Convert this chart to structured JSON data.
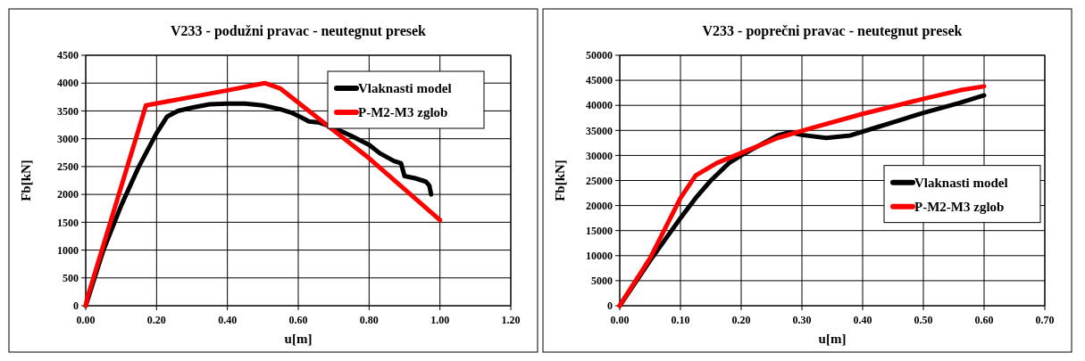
{
  "chart_data": [
    {
      "type": "line",
      "title": "V233 - podužni pravac - neutegnut presek",
      "xlabel": "u[m]",
      "ylabel": "Fb[kN]",
      "xlim": [
        0,
        1.2
      ],
      "xticks": [
        {
          "value": 0,
          "label": "0.00"
        },
        {
          "value": 0.2,
          "label": "0.20"
        },
        {
          "value": 0.4,
          "label": "0.40"
        },
        {
          "value": 0.6,
          "label": "0.60"
        },
        {
          "value": 0.8,
          "label": "0.80"
        },
        {
          "value": 1,
          "label": "1.00"
        },
        {
          "value": 1.2,
          "label": "1.20"
        }
      ],
      "ylim": [
        0,
        4500
      ],
      "yticks": [
        0,
        500,
        1000,
        1500,
        2000,
        2500,
        3000,
        3500,
        4000,
        4500
      ],
      "grid": true,
      "legend": "top right",
      "marker": "none",
      "line_style": "solid",
      "series": [
        {
          "name": "Vlaknasti model",
          "color": "#000000",
          "x": [
            0,
            0.05,
            0.1,
            0.15,
            0.2,
            0.23,
            0.26,
            0.3,
            0.35,
            0.4,
            0.45,
            0.5,
            0.55,
            0.58,
            0.61,
            0.63,
            0.66,
            0.7,
            0.75,
            0.8,
            0.83,
            0.87,
            0.89,
            0.9,
            0.93,
            0.96,
            0.97,
            0.975
          ],
          "values": [
            0,
            1000,
            1800,
            2500,
            3100,
            3400,
            3500,
            3560,
            3620,
            3630,
            3630,
            3600,
            3530,
            3470,
            3380,
            3310,
            3290,
            3200,
            3050,
            2890,
            2740,
            2600,
            2560,
            2330,
            2290,
            2230,
            2160,
            2000
          ]
        },
        {
          "name": "P-M2-M3 zglob",
          "color": "#ff0000",
          "x": [
            0,
            0.005,
            0.17,
            0.4,
            0.505,
            0.55,
            0.8,
            1.0
          ],
          "values": [
            0,
            150,
            3600,
            3870,
            4000,
            3900,
            2650,
            1540
          ]
        }
      ]
    },
    {
      "type": "line",
      "title": "V233 - poprečni pravac - neutegnut presek",
      "xlabel": "u[m]",
      "ylabel": "Fb[kN]",
      "xlim": [
        0,
        0.7
      ],
      "xticks": [
        {
          "value": 0,
          "label": "0.00"
        },
        {
          "value": 0.1,
          "label": "0.10"
        },
        {
          "value": 0.2,
          "label": "0.20"
        },
        {
          "value": 0.3,
          "label": "0.30"
        },
        {
          "value": 0.4,
          "label": "0.40"
        },
        {
          "value": 0.5,
          "label": "0.50"
        },
        {
          "value": 0.6,
          "label": "0.60"
        },
        {
          "value": 0.7,
          "label": "0.70"
        }
      ],
      "ylim": [
        0,
        50000
      ],
      "yticks": [
        0,
        5000,
        10000,
        15000,
        20000,
        25000,
        30000,
        35000,
        40000,
        45000,
        50000
      ],
      "grid": true,
      "legend": "right",
      "marker": "none",
      "line_style": "solid",
      "series": [
        {
          "name": "Vlaknasti model",
          "color": "#000000",
          "x": [
            0,
            0.05,
            0.1,
            0.125,
            0.15,
            0.18,
            0.2,
            0.23,
            0.26,
            0.28,
            0.3,
            0.34,
            0.38,
            0.42,
            0.46,
            0.5,
            0.56,
            0.6
          ],
          "values": [
            0,
            9000,
            17500,
            21500,
            25000,
            28500,
            30000,
            32000,
            34000,
            34600,
            34100,
            33500,
            34000,
            35500,
            37000,
            38500,
            40500,
            42000
          ]
        },
        {
          "name": "P-M2-M3 zglob",
          "color": "#ff0000",
          "x": [
            0,
            0.005,
            0.05,
            0.1,
            0.125,
            0.16,
            0.2,
            0.26,
            0.32,
            0.4,
            0.5,
            0.56,
            0.6
          ],
          "values": [
            0,
            1000,
            9500,
            21500,
            26000,
            28500,
            30500,
            33500,
            35600,
            38300,
            41300,
            43000,
            43800
          ]
        }
      ]
    }
  ]
}
